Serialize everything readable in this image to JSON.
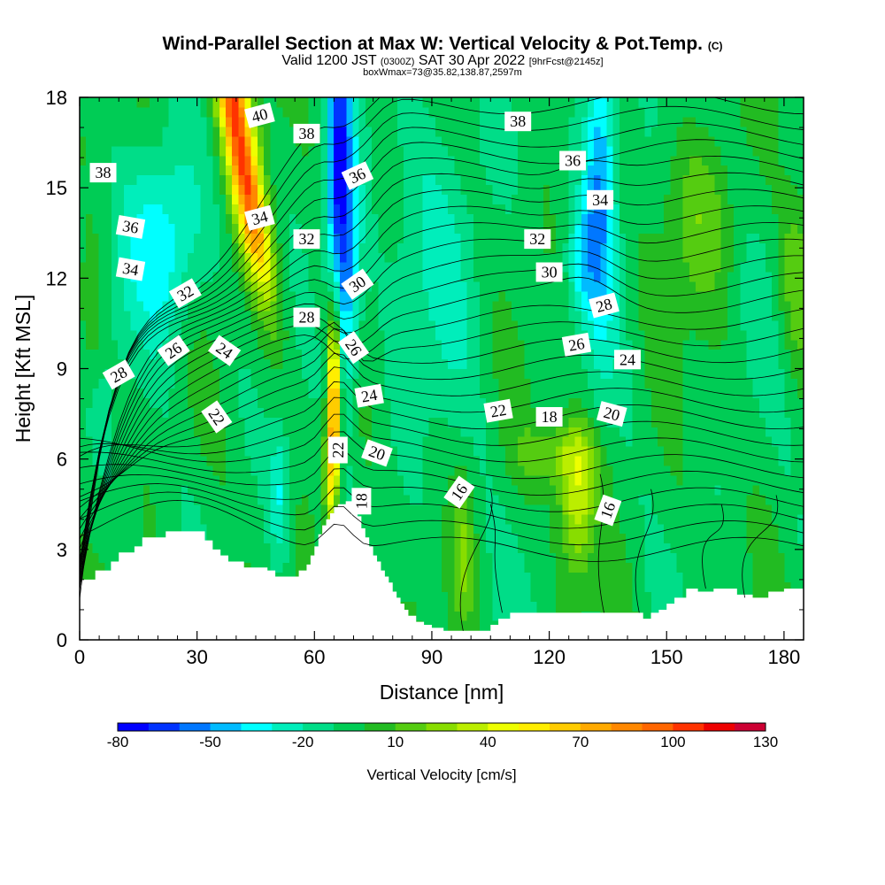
{
  "header": {
    "title": "Wind-Parallel Section at Max W: Vertical Velocity & Pot.Temp.",
    "copyright": "(C)",
    "valid_prefix": "Valid 1200 JST",
    "valid_utc": "(0300Z)",
    "valid_date": "SAT 30 Apr 2022",
    "forecast": "[9hrFcst@2145z]",
    "box_info": "boxWmax=73@35.82,138.87,2597m"
  },
  "chart_data": {
    "type": "heatmap",
    "xlabel": "Distance [nm]",
    "ylabel": "Height [Kft MSL]",
    "xlim": [
      0,
      185
    ],
    "ylim": [
      0,
      18
    ],
    "x_ticks": [
      "0",
      "30",
      "60",
      "90",
      "120",
      "150",
      "180"
    ],
    "y_ticks": [
      "0",
      "3",
      "6",
      "9",
      "12",
      "15",
      "18"
    ],
    "colorbar": {
      "label": "Vertical Velocity [cm/s]",
      "tick_labels": [
        "-80",
        "-50",
        "-20",
        "10",
        "40",
        "70",
        "100",
        "130"
      ],
      "range": [
        -80,
        130
      ],
      "step": 10,
      "colors": [
        "#0000ff",
        "#0033ff",
        "#0077ff",
        "#00bbff",
        "#00ffff",
        "#00eebb",
        "#00dd88",
        "#00cc55",
        "#22bb22",
        "#55cc11",
        "#88dd00",
        "#bbee00",
        "#eeff00",
        "#ffee00",
        "#ffcc00",
        "#ffaa00",
        "#ff8800",
        "#ff6600",
        "#ff3300",
        "#ee0000",
        "#cc0033",
        "#990066",
        "#660099"
      ]
    },
    "contour_labels": [
      {
        "label": "40",
        "x": 46,
        "y": 17.4,
        "rot": -15
      },
      {
        "label": "38",
        "x": 58,
        "y": 16.8,
        "rot": 0
      },
      {
        "label": "36",
        "x": 71,
        "y": 15.4,
        "rot": -25
      },
      {
        "label": "38",
        "x": 112,
        "y": 17.2,
        "rot": 0
      },
      {
        "label": "36",
        "x": 126,
        "y": 15.9,
        "rot": 0
      },
      {
        "label": "34",
        "x": 133,
        "y": 14.6,
        "rot": 0
      },
      {
        "label": "32",
        "x": 117,
        "y": 13.3,
        "rot": 0
      },
      {
        "label": "30",
        "x": 120,
        "y": 12.2,
        "rot": 0
      },
      {
        "label": "28",
        "x": 134,
        "y": 11.1,
        "rot": -15
      },
      {
        "label": "26",
        "x": 127,
        "y": 9.8,
        "rot": -10
      },
      {
        "label": "24",
        "x": 140,
        "y": 9.3,
        "rot": 0
      },
      {
        "label": "22",
        "x": 107,
        "y": 7.6,
        "rot": -10
      },
      {
        "label": "18",
        "x": 120,
        "y": 7.4,
        "rot": 0
      },
      {
        "label": "20",
        "x": 136,
        "y": 7.5,
        "rot": 15
      },
      {
        "label": "38",
        "x": 6,
        "y": 15.5,
        "rot": 0
      },
      {
        "label": "36",
        "x": 13,
        "y": 13.7,
        "rot": 10
      },
      {
        "label": "34",
        "x": 13,
        "y": 12.3,
        "rot": 10
      },
      {
        "label": "34",
        "x": 46,
        "y": 14.0,
        "rot": -15
      },
      {
        "label": "32",
        "x": 58,
        "y": 13.3,
        "rot": 0
      },
      {
        "label": "32",
        "x": 27,
        "y": 11.5,
        "rot": -30
      },
      {
        "label": "30",
        "x": 71,
        "y": 11.8,
        "rot": -35
      },
      {
        "label": "28",
        "x": 58,
        "y": 10.7,
        "rot": 0
      },
      {
        "label": "28",
        "x": 10,
        "y": 8.8,
        "rot": -30
      },
      {
        "label": "26",
        "x": 24,
        "y": 9.6,
        "rot": -35
      },
      {
        "label": "24",
        "x": 37,
        "y": 9.6,
        "rot": 35
      },
      {
        "label": "26",
        "x": 70,
        "y": 9.7,
        "rot": 55
      },
      {
        "label": "24",
        "x": 74,
        "y": 8.1,
        "rot": -10
      },
      {
        "label": "22",
        "x": 35,
        "y": 7.4,
        "rot": 55
      },
      {
        "label": "22",
        "x": 66,
        "y": 6.3,
        "rot": -90
      },
      {
        "label": "20",
        "x": 76,
        "y": 6.2,
        "rot": 20
      },
      {
        "label": "18",
        "x": 72,
        "y": 4.6,
        "rot": -90
      },
      {
        "label": "16",
        "x": 97,
        "y": 4.9,
        "rot": -55
      },
      {
        "label": "16",
        "x": 135,
        "y": 4.3,
        "rot": -70
      }
    ]
  },
  "colors": {
    "terrain": "#ffffff",
    "contour": "#000000"
  }
}
